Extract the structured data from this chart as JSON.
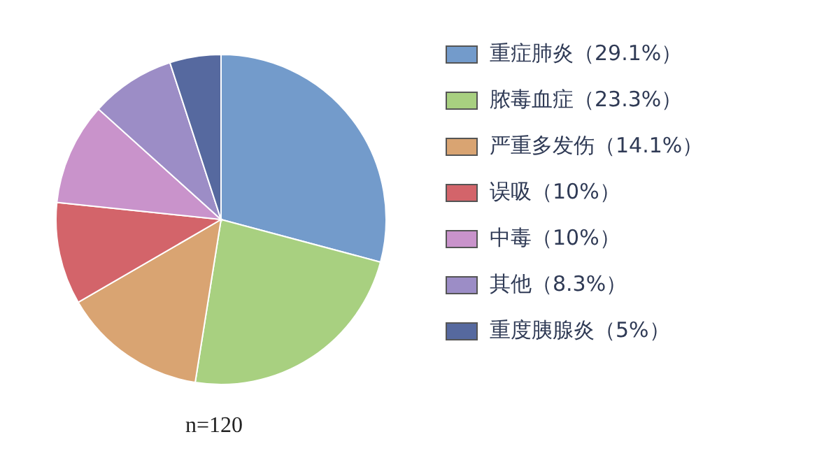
{
  "chart_data": {
    "type": "pie",
    "categories": [
      "重症肺炎（29.1%）",
      "脓毒血症（23.3%）",
      "严重多发伤（14.1%）",
      "误吸（10%）",
      "中毒（10%）",
      "其他（8.3%）",
      "重度胰腺炎（5%）"
    ],
    "values": [
      29.1,
      23.3,
      14.1,
      10,
      10,
      8.3,
      5
    ],
    "colors": [
      "#739bcb",
      "#a8d080",
      "#d9a472",
      "#d3646a",
      "#c993cb",
      "#9c8dc6",
      "#56699f"
    ],
    "legend": "right",
    "annotations": [
      "n=120"
    ]
  }
}
